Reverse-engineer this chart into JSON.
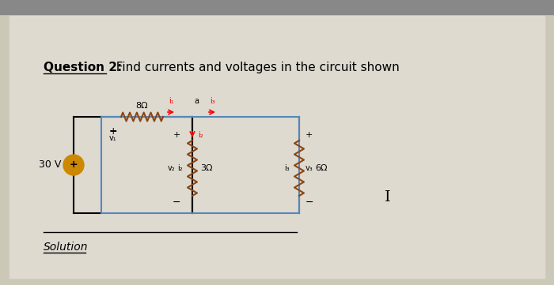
{
  "title_q": "Question 2:",
  "title_rest": "  Find currents and voltages in the circuit shown",
  "solution_label": "Solution",
  "bg_color": "#ccc8b8",
  "paper_color": "#e0ddd0",
  "top_bar_color": "#888888",
  "circuit_box_color": "#5588bb",
  "wire_color": "#000000",
  "resistor_color": "#8B4513",
  "source_color": "#cc8800",
  "text_color": "#000000",
  "label_8ohm": "8Ω",
  "label_3ohm": "3Ω",
  "label_6ohm": "6Ω",
  "label_30v": "30 V",
  "label_i1": "i₁",
  "label_i2": "i₂",
  "label_i3": "i₃",
  "label_a": "a",
  "label_v1": "v₁",
  "label_v2": "v₂",
  "label_v3": "v₃"
}
